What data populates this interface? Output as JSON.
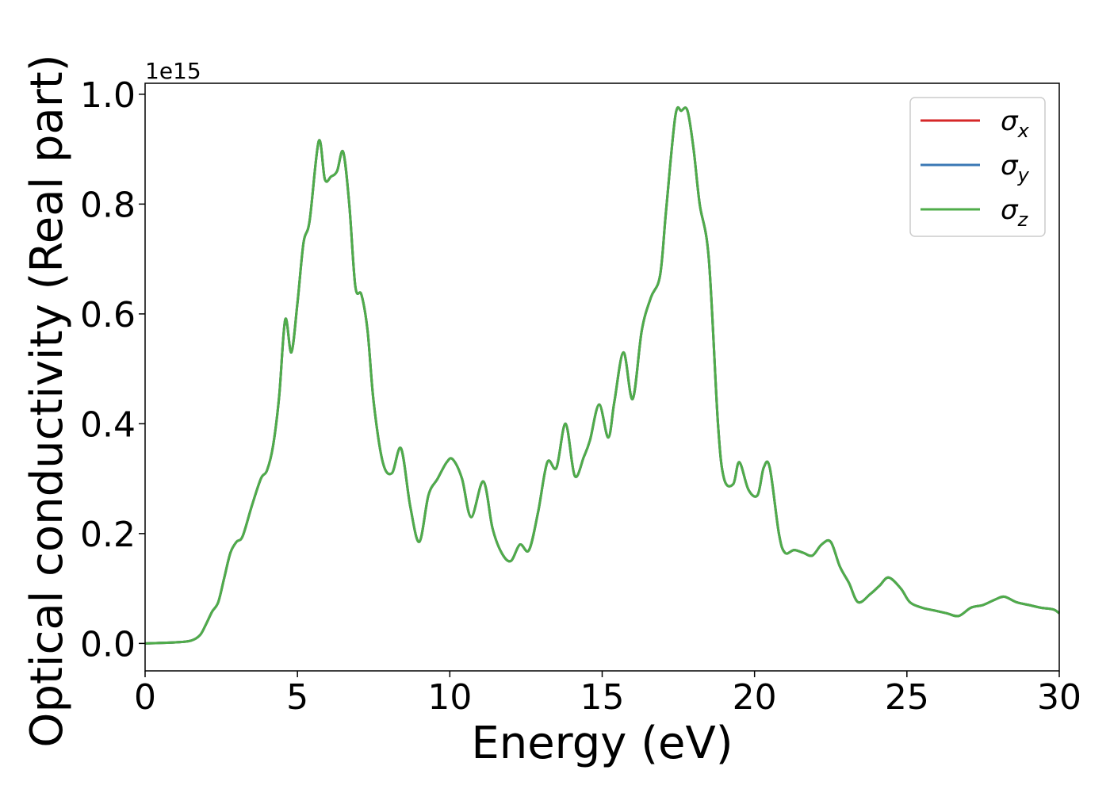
{
  "chart_data": {
    "type": "line",
    "xlabel": "Energy (eV)",
    "ylabel": "Optical conductivity (Real part)",
    "y_offset_label": "1e15",
    "xlim": [
      0,
      30
    ],
    "ylim": [
      -0.05,
      1.02
    ],
    "x_ticks": [
      0,
      5,
      10,
      15,
      20,
      25,
      30
    ],
    "x_tick_labels": [
      "0",
      "5",
      "10",
      "15",
      "20",
      "25",
      "30"
    ],
    "y_ticks": [
      0.0,
      0.2,
      0.4,
      0.6,
      0.8,
      1.0
    ],
    "y_tick_labels": [
      "0.0",
      "0.2",
      "0.4",
      "0.6",
      "0.8",
      "1.0"
    ],
    "grid": false,
    "legend_position": "top-right",
    "series": [
      {
        "name": "σx",
        "symbol": "σ",
        "subscript": "x",
        "color": "#d62728"
      },
      {
        "name": "σy",
        "symbol": "σ",
        "subscript": "y",
        "color": "#3a78b5"
      },
      {
        "name": "σz",
        "symbol": "σ",
        "subscript": "z",
        "color": "#4fac4a"
      }
    ],
    "x": [
      0,
      1.0,
      1.5,
      1.8,
      2.0,
      2.2,
      2.4,
      2.6,
      2.8,
      3.0,
      3.2,
      3.5,
      3.8,
      4.0,
      4.2,
      4.4,
      4.6,
      4.8,
      5.0,
      5.2,
      5.4,
      5.7,
      5.9,
      6.1,
      6.3,
      6.5,
      6.7,
      6.9,
      7.1,
      7.3,
      7.5,
      7.8,
      8.1,
      8.4,
      8.7,
      9.0,
      9.3,
      9.6,
      9.9,
      10.1,
      10.4,
      10.7,
      11.1,
      11.4,
      11.7,
      12.0,
      12.3,
      12.6,
      12.9,
      13.2,
      13.5,
      13.8,
      14.1,
      14.4,
      14.6,
      14.9,
      15.2,
      15.4,
      15.7,
      16.0,
      16.3,
      16.6,
      16.9,
      17.1,
      17.4,
      17.6,
      17.8,
      18.0,
      18.2,
      18.5,
      18.8,
      19.0,
      19.3,
      19.5,
      19.8,
      20.1,
      20.3,
      20.5,
      20.8,
      21.0,
      21.3,
      21.6,
      21.9,
      22.2,
      22.5,
      22.8,
      23.1,
      23.4,
      23.8,
      24.1,
      24.4,
      24.8,
      25.1,
      25.5,
      25.9,
      26.3,
      26.7,
      27.1,
      27.5,
      27.9,
      28.2,
      28.6,
      29.0,
      29.4,
      29.8,
      30.0
    ],
    "y": [
      0.0,
      0.002,
      0.005,
      0.015,
      0.035,
      0.058,
      0.075,
      0.12,
      0.165,
      0.185,
      0.195,
      0.25,
      0.3,
      0.315,
      0.36,
      0.45,
      0.59,
      0.53,
      0.62,
      0.73,
      0.77,
      0.915,
      0.845,
      0.85,
      0.86,
      0.895,
      0.8,
      0.65,
      0.635,
      0.57,
      0.44,
      0.33,
      0.31,
      0.355,
      0.25,
      0.185,
      0.27,
      0.3,
      0.33,
      0.335,
      0.3,
      0.23,
      0.295,
      0.21,
      0.165,
      0.15,
      0.18,
      0.17,
      0.24,
      0.33,
      0.32,
      0.4,
      0.305,
      0.34,
      0.37,
      0.435,
      0.375,
      0.44,
      0.53,
      0.445,
      0.57,
      0.63,
      0.67,
      0.79,
      0.96,
      0.97,
      0.97,
      0.9,
      0.8,
      0.7,
      0.4,
      0.3,
      0.29,
      0.33,
      0.28,
      0.27,
      0.32,
      0.32,
      0.2,
      0.165,
      0.17,
      0.165,
      0.16,
      0.18,
      0.185,
      0.14,
      0.11,
      0.075,
      0.09,
      0.105,
      0.12,
      0.1,
      0.075,
      0.065,
      0.06,
      0.055,
      0.05,
      0.065,
      0.07,
      0.08,
      0.085,
      0.075,
      0.07,
      0.065,
      0.062,
      0.055
    ]
  }
}
